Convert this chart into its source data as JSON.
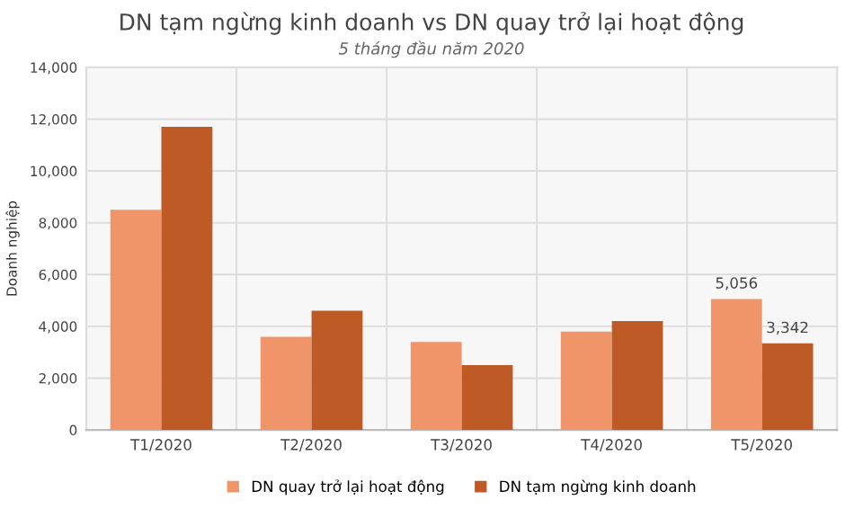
{
  "chart_data": {
    "type": "bar",
    "title": "DN tạm ngừng kinh doanh vs DN quay trở lại hoạt động",
    "subtitle": "5 tháng đầu năm 2020",
    "ylabel": "Doanh nghiệp",
    "categories": [
      "T1/2020",
      "T2/2020",
      "T3/2020",
      "T4/2020",
      "T5/2020"
    ],
    "series": [
      {
        "name": "DN quay trở lại hoạt động",
        "color": "#f0956a",
        "values": [
          8500,
          3600,
          3400,
          3800,
          5056
        ],
        "value_labels": [
          null,
          null,
          null,
          null,
          "5,056"
        ]
      },
      {
        "name": "DN tạm ngừng kinh doanh",
        "color": "#bd5a25",
        "values": [
          11700,
          4600,
          2500,
          4200,
          3342
        ],
        "value_labels": [
          null,
          null,
          null,
          null,
          "3,342"
        ]
      }
    ],
    "ylim": [
      0,
      14000
    ],
    "yticks": [
      {
        "value": 0,
        "label": "0"
      },
      {
        "value": 2000,
        "label": "2,000"
      },
      {
        "value": 4000,
        "label": "4,000"
      },
      {
        "value": 6000,
        "label": "6,000"
      },
      {
        "value": 8000,
        "label": "8,000"
      },
      {
        "value": 10000,
        "label": "10,000"
      },
      {
        "value": 12000,
        "label": "12,000"
      },
      {
        "value": 14000,
        "label": "14,000"
      }
    ],
    "grid": true,
    "legend": "bottom"
  }
}
